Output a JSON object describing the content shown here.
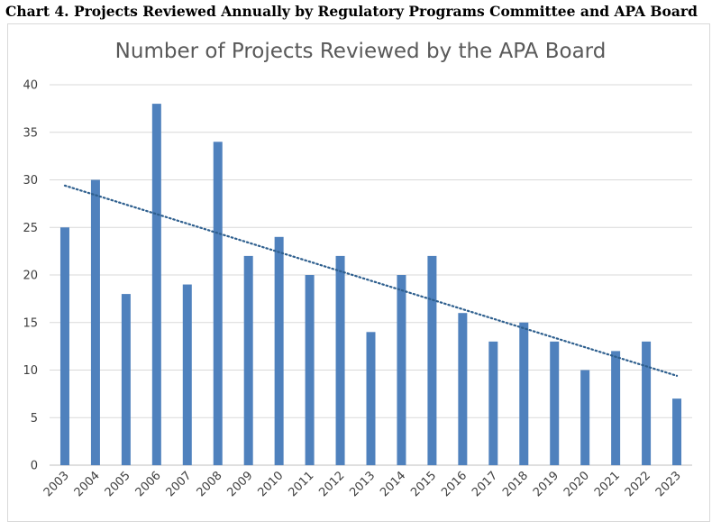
{
  "caption": "Chart 4. Projects Reviewed Annually by Regulatory Programs Committee and APA Board",
  "chart_data": {
    "type": "bar",
    "title": "Number of Projects Reviewed by the APA Board",
    "xlabel": "",
    "ylabel": "",
    "categories": [
      "2003",
      "2004",
      "2005",
      "2006",
      "2007",
      "2008",
      "2009",
      "2010",
      "2011",
      "2012",
      "2013",
      "2014",
      "2015",
      "2016",
      "2017",
      "2018",
      "2019",
      "2020",
      "2021",
      "2022",
      "2023"
    ],
    "values": [
      25,
      30,
      18,
      38,
      19,
      34,
      22,
      24,
      20,
      22,
      14,
      20,
      22,
      16,
      13,
      15,
      13,
      10,
      12,
      13,
      7
    ],
    "ylim": [
      0,
      40
    ],
    "yticks": [
      0,
      5,
      10,
      15,
      20,
      25,
      30,
      35,
      40
    ],
    "grid": true,
    "trendline": {
      "type": "linear",
      "style": "dotted",
      "start": 29.4,
      "end": 9.4
    },
    "colors": {
      "bar": "#4f81bd",
      "trend": "#2e5f8e",
      "grid": "#d9d9d9"
    }
  }
}
